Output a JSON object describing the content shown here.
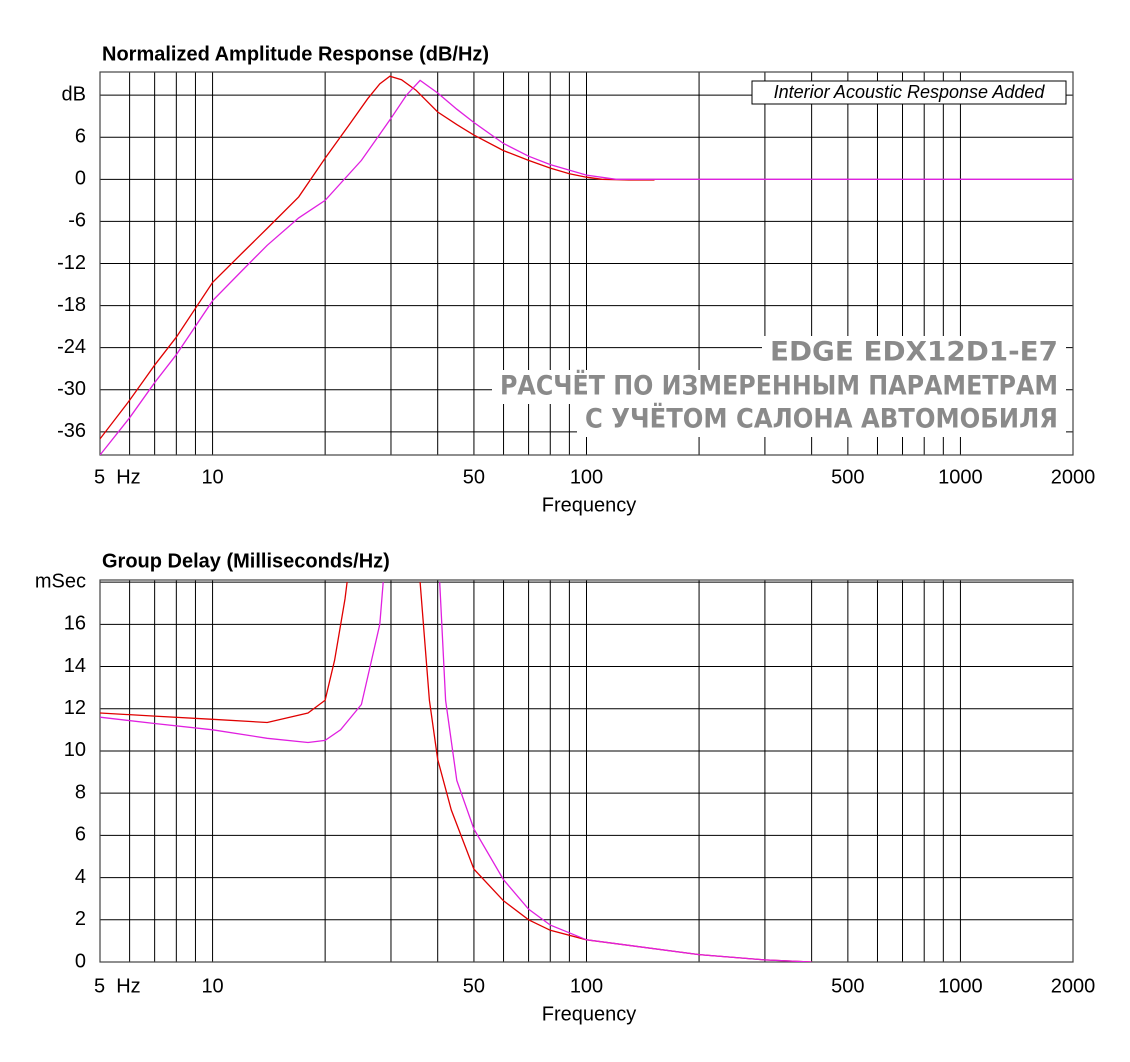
{
  "chart_data": [
    {
      "type": "line",
      "title": "Normalized Amplitude Response (dB/Hz)",
      "x_label": "Frequency",
      "annotation": "Interior Acoustic Response Added",
      "watermark": [
        "EDGE EDX12D1-E7",
        "РАСЧЁТ ПО ИЗМЕРЕННЫМ ПАРАМЕТРАМ",
        "С УЧЁТОМ САЛОНА АВТОМОБИЛЯ"
      ],
      "xscale": "log",
      "xlim": [
        5,
        2000
      ],
      "xticks": [
        {
          "value": 5,
          "label": "5  Hz"
        },
        10,
        50,
        100,
        500,
        1000,
        2000
      ],
      "x_minor_ticks": [
        6,
        7,
        8,
        9,
        20,
        30,
        40,
        60,
        70,
        80,
        90,
        200,
        300,
        400,
        600,
        700,
        800,
        900
      ],
      "ylim": [
        -39.3,
        15.3
      ],
      "yticks": [
        {
          "value": 12,
          "label": "dB"
        },
        6,
        0,
        -6,
        -12,
        -18,
        -24,
        -30,
        -36
      ],
      "grid": true,
      "series": [
        {
          "color": "#e00000",
          "x": [
            5,
            6,
            7,
            8,
            10,
            12,
            14,
            17,
            20,
            23,
            26,
            28,
            29.8,
            32,
            35,
            40,
            45,
            50,
            60,
            70,
            80,
            90,
            100,
            110,
            130,
            152
          ],
          "values": [
            -37,
            -31.5,
            -26.5,
            -22.5,
            -14.7,
            -10.5,
            -7,
            -2.5,
            3,
            7.5,
            11.5,
            13.6,
            14.7,
            14.2,
            12.7,
            9.6,
            7.8,
            6.3,
            4.1,
            2.7,
            1.6,
            0.8,
            0.3,
            0,
            -0.1,
            -0.1
          ]
        },
        {
          "color": "#e020e0",
          "x": [
            5,
            6,
            7,
            8,
            10,
            12,
            14,
            17,
            20,
            25,
            30,
            33,
            35.9,
            40,
            45,
            50,
            60,
            70,
            80,
            100,
            120,
            2000
          ],
          "values": [
            -39.3,
            -34,
            -29,
            -25,
            -17.3,
            -13,
            -9.4,
            -5.5,
            -3,
            2.7,
            8.7,
            12,
            14.1,
            12.3,
            10,
            8.1,
            5.1,
            3.3,
            2.1,
            0.6,
            0,
            0
          ]
        }
      ]
    },
    {
      "type": "line",
      "title": "Group Delay (Milliseconds/Hz)",
      "x_label": "Frequency",
      "xscale": "log",
      "xlim": [
        5,
        2000
      ],
      "xticks": [
        {
          "value": 5,
          "label": "5  Hz"
        },
        10,
        50,
        100,
        500,
        1000,
        2000
      ],
      "x_minor_ticks": [
        6,
        7,
        8,
        9,
        20,
        30,
        40,
        60,
        70,
        80,
        90,
        200,
        300,
        400,
        600,
        700,
        800,
        900
      ],
      "ylim": [
        0,
        18.1
      ],
      "yticks": [
        0,
        2,
        4,
        6,
        8,
        10,
        12,
        14,
        16,
        {
          "value": 18,
          "label": "mSec"
        }
      ],
      "grid": true,
      "series": [
        {
          "color": "#e00000",
          "x": [
            5,
            7,
            10,
            14,
            18,
            20,
            21.2,
            22.6,
            22.9,
            29.8,
            35.9,
            38,
            40,
            43.5,
            50,
            60,
            70,
            80,
            100,
            200,
            300,
            400
          ],
          "values": [
            11.8,
            11.65,
            11.5,
            11.35,
            11.8,
            12.4,
            14.3,
            17.2,
            18,
            null,
            18,
            12.4,
            9.6,
            7.2,
            4.4,
            2.9,
            2.0,
            1.5,
            1.05,
            0.35,
            0.1,
            0
          ]
        },
        {
          "color": "#e020e0",
          "x": [
            5,
            7,
            10,
            14,
            18,
            20,
            22,
            25,
            28,
            28.6,
            35.9,
            40.5,
            42,
            45,
            50,
            60,
            70,
            80,
            100,
            200,
            300,
            400
          ],
          "values": [
            11.6,
            11.3,
            11.0,
            10.6,
            10.4,
            10.5,
            11.0,
            12.2,
            16,
            18,
            null,
            18,
            12.4,
            8.6,
            6.3,
            3.9,
            2.5,
            1.75,
            1.05,
            0.35,
            0.1,
            0
          ]
        }
      ]
    }
  ]
}
